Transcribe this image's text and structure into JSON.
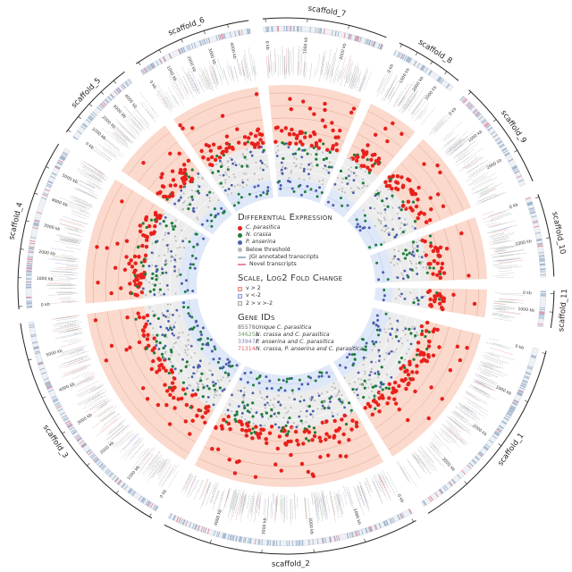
{
  "scaffolds": [
    {
      "name": "scaffold_1",
      "label": "scaffold_1",
      "ticks": [
        "0 kb",
        "1000 kb",
        "2000 kb",
        "3000 kb"
      ]
    },
    {
      "name": "scaffold_2",
      "label": "scaffold_2",
      "ticks": [
        "0 kb",
        "1000 kb",
        "2000 kb",
        "3000 kb",
        "4000 kb"
      ]
    },
    {
      "name": "scaffold_3",
      "label": "scaffold_3",
      "ticks": [
        "0 kb",
        "1000 kb",
        "2000 kb",
        "3000 kb",
        "4000 kb",
        "5000 kb"
      ]
    },
    {
      "name": "scaffold_4",
      "label": "scaffold_4",
      "ticks": [
        "0 kb",
        "1000 kb",
        "2000 kb",
        "3000 kb",
        "4000 kb",
        "5000 kb"
      ]
    },
    {
      "name": "scaffold_5",
      "label": "scaffold_5",
      "ticks": [
        "0 kb",
        "1000 kb",
        "2000 kb",
        "3000 kb",
        "4000 kb"
      ]
    },
    {
      "name": "scaffold_6",
      "label": "scaffold_6",
      "ticks": [
        "0 kb",
        "1000 kb",
        "2000 kb",
        "3000 kb",
        "4000 kb"
      ]
    },
    {
      "name": "scaffold_7",
      "label": "scaffold_7",
      "ticks": [
        "0 kb",
        "1000 kb",
        "2000 kb"
      ]
    },
    {
      "name": "scaffold_8",
      "label": "scaffold_8",
      "ticks": [
        "0 kb",
        "1000 kb",
        "2000 kb",
        "3000 kb"
      ]
    },
    {
      "name": "scaffold_9",
      "label": "scaffold_9",
      "ticks": [
        "0 kb",
        "1000 kb",
        "2000 kb"
      ]
    },
    {
      "name": "scaffold_10",
      "label": "scaffold_10",
      "ticks": [
        "0 kb",
        "1000 kb"
      ]
    },
    {
      "name": "scaffold_11",
      "label": "scaffold_11",
      "ticks": [
        "0 kb",
        "1000 kb"
      ]
    }
  ],
  "legend": {
    "de_title": "Differential Expression",
    "de_items": [
      {
        "label": "C. parasitica",
        "color": "#e8201c",
        "shape": "dot"
      },
      {
        "label": "N. crassa",
        "color": "#1e7d3a",
        "shape": "dot"
      },
      {
        "label": "P. anserina",
        "color": "#4a5fae",
        "shape": "dot"
      },
      {
        "label": "Below threshold",
        "color": "#b8b8b8",
        "shape": "dot"
      },
      {
        "label": "JGI annotated transcripts",
        "color": "#9fb4cc",
        "shape": "line"
      },
      {
        "label": "Novel transcripts",
        "color": "#e58aa0",
        "shape": "line"
      }
    ],
    "scale_title": "Scale, Log2 Fold Change",
    "scale_items": [
      {
        "label": "v > 2",
        "fill": "#fbd9cc",
        "border": "#e0907a"
      },
      {
        "label": "v <-2",
        "fill": "#dfe8f8",
        "border": "#8aa0d0"
      },
      {
        "label": "2 > v >-2",
        "fill": "#ececec",
        "border": "#a8a8a8"
      }
    ],
    "gene_title": "Gene IDs",
    "gene_items": [
      {
        "id": "85578",
        "desc": "Unique C. parasitica",
        "color": "#666666"
      },
      {
        "id": "346251",
        "desc": "N. crassa and C. parasitica",
        "color": "#6a9a6a"
      },
      {
        "id": "339471",
        "desc": "P. anserina and C. parasitica",
        "color": "#7f7fbf"
      },
      {
        "id": "71314",
        "desc": "N. crassa, P. anserina and C. parasitica",
        "color": "#e06060"
      }
    ]
  },
  "colors": {
    "up_band": "#fbd9cc",
    "neutral_band": "#ececec",
    "down_band": "#dfe8f8",
    "c_parasitica": "#e8201c",
    "n_crassa": "#1e7d3a",
    "p_anserina": "#4a5fae",
    "below": "#b8b8b8",
    "jgi": "#9fb4cc",
    "novel": "#e58aa0"
  }
}
